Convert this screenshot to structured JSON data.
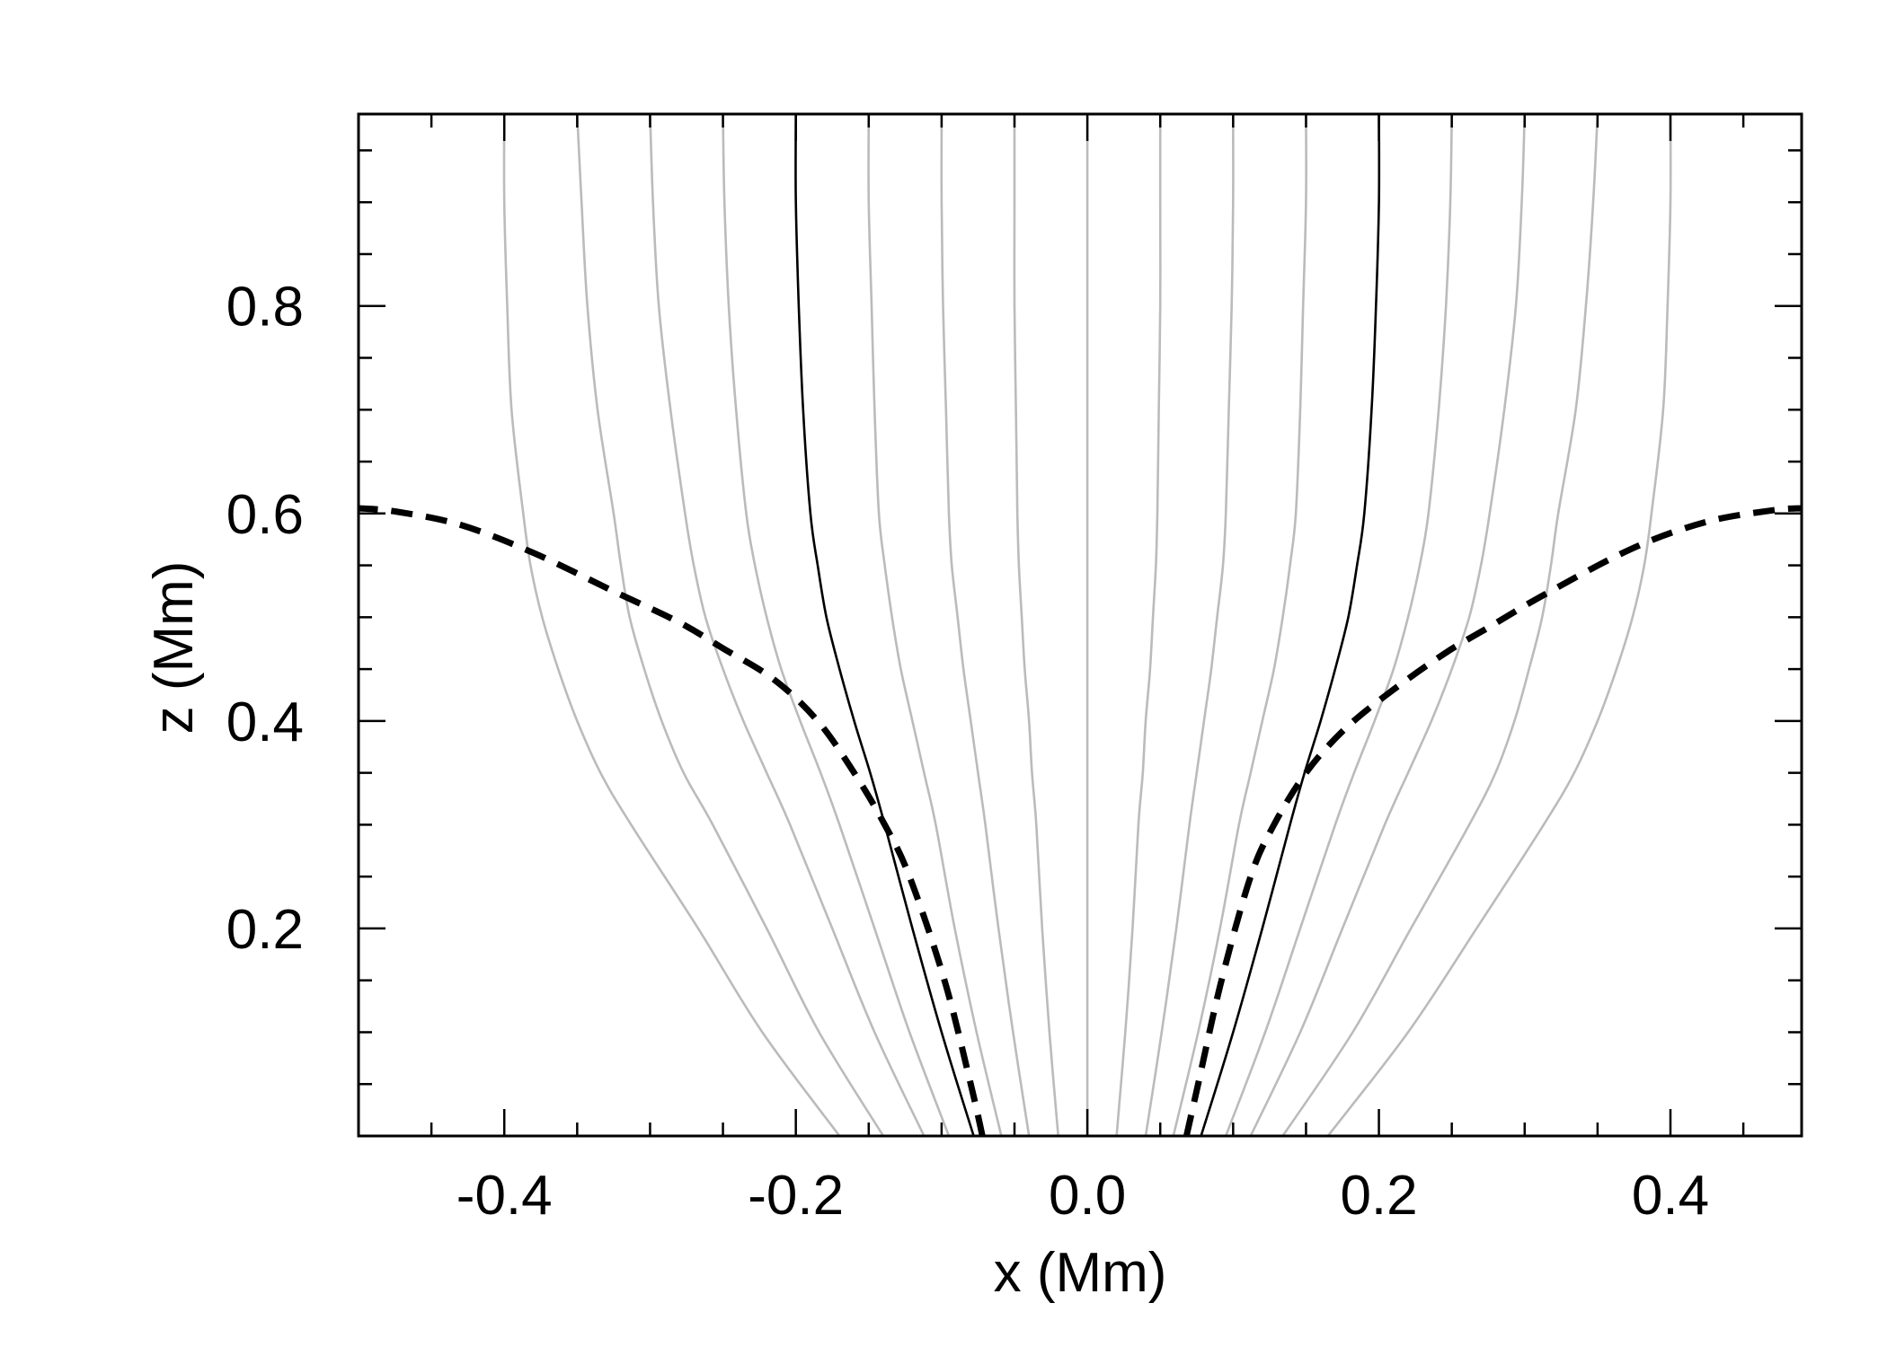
{
  "chart_data": {
    "type": "line",
    "title": "",
    "xlabel": "x (Mm)",
    "ylabel": "z (Mm)",
    "xlim": [
      -0.5,
      0.49
    ],
    "ylim": [
      0.0,
      0.985
    ],
    "x_ticks": [
      -0.4,
      -0.2,
      0.0,
      0.2,
      0.4
    ],
    "x_tick_labels": [
      "-0.4",
      "-0.2",
      "0.0",
      "0.2",
      "0.4"
    ],
    "y_ticks": [
      0.2,
      0.4,
      0.6,
      0.8
    ],
    "y_tick_labels": [
      "0.2",
      "0.4",
      "0.6",
      "0.8"
    ],
    "grid": false,
    "legend": "none",
    "colors": {
      "field_line": "#bbbbbb",
      "highlight_line": "#000000",
      "boundary": "#000000"
    },
    "field_lines": {
      "z": [
        0.0,
        0.1,
        0.2,
        0.3,
        0.35,
        0.4,
        0.45,
        0.5,
        0.55,
        0.6,
        0.7,
        0.8,
        0.9,
        0.985
      ],
      "highlight_index": 4,
      "series": [
        {
          "x": [
            -0.17,
            -0.223,
            -0.267,
            -0.313,
            -0.334,
            -0.35,
            -0.363,
            -0.374,
            -0.382,
            -0.387,
            -0.395,
            -0.398,
            -0.4,
            -0.4
          ]
        },
        {
          "x": [
            -0.14,
            -0.184,
            -0.22,
            -0.257,
            -0.277,
            -0.292,
            -0.304,
            -0.314,
            -0.32,
            -0.325,
            -0.336,
            -0.343,
            -0.347,
            -0.35
          ]
        },
        {
          "x": [
            -0.112,
            -0.146,
            -0.175,
            -0.204,
            -0.22,
            -0.236,
            -0.25,
            -0.262,
            -0.27,
            -0.276,
            -0.286,
            -0.294,
            -0.298,
            -0.3
          ]
        },
        {
          "x": [
            -0.095,
            -0.122,
            -0.146,
            -0.17,
            -0.183,
            -0.197,
            -0.21,
            -0.22,
            -0.228,
            -0.234,
            -0.241,
            -0.246,
            -0.249,
            -0.25
          ]
        },
        {
          "x": [
            -0.078,
            -0.1,
            -0.12,
            -0.139,
            -0.149,
            -0.16,
            -0.17,
            -0.179,
            -0.185,
            -0.19,
            -0.195,
            -0.198,
            -0.2,
            -0.2
          ]
        },
        {
          "x": [
            -0.059,
            -0.076,
            -0.091,
            -0.104,
            -0.112,
            -0.12,
            -0.128,
            -0.134,
            -0.139,
            -0.143,
            -0.146,
            -0.148,
            -0.15,
            -0.15
          ]
        },
        {
          "x": [
            -0.04,
            -0.051,
            -0.061,
            -0.07,
            -0.075,
            -0.08,
            -0.085,
            -0.089,
            -0.093,
            -0.095,
            -0.097,
            -0.099,
            -0.1,
            -0.1
          ]
        },
        {
          "x": [
            -0.02,
            -0.026,
            -0.031,
            -0.035,
            -0.038,
            -0.04,
            -0.043,
            -0.045,
            -0.047,
            -0.048,
            -0.049,
            -0.05,
            -0.05,
            -0.05
          ]
        },
        {
          "x": [
            0.0,
            0.0,
            0.0,
            0.0,
            0.0,
            0.0,
            0.0,
            0.0,
            0.0,
            0.0,
            0.0,
            0.0,
            0.0,
            0.0
          ]
        },
        {
          "x": [
            0.02,
            0.026,
            0.031,
            0.035,
            0.038,
            0.04,
            0.043,
            0.045,
            0.047,
            0.048,
            0.049,
            0.05,
            0.05,
            0.05
          ]
        },
        {
          "x": [
            0.04,
            0.051,
            0.061,
            0.07,
            0.075,
            0.08,
            0.085,
            0.089,
            0.093,
            0.095,
            0.097,
            0.099,
            0.1,
            0.1
          ]
        },
        {
          "x": [
            0.059,
            0.076,
            0.091,
            0.104,
            0.112,
            0.12,
            0.128,
            0.134,
            0.139,
            0.143,
            0.146,
            0.148,
            0.15,
            0.15
          ]
        },
        {
          "x": [
            0.078,
            0.1,
            0.12,
            0.139,
            0.149,
            0.16,
            0.17,
            0.179,
            0.185,
            0.19,
            0.195,
            0.198,
            0.2,
            0.2
          ]
        },
        {
          "x": [
            0.095,
            0.122,
            0.146,
            0.17,
            0.183,
            0.197,
            0.21,
            0.22,
            0.228,
            0.234,
            0.241,
            0.246,
            0.249,
            0.25
          ]
        },
        {
          "x": [
            0.112,
            0.146,
            0.175,
            0.204,
            0.22,
            0.236,
            0.25,
            0.262,
            0.27,
            0.276,
            0.286,
            0.294,
            0.298,
            0.3
          ]
        },
        {
          "x": [
            0.134,
            0.182,
            0.222,
            0.262,
            0.28,
            0.293,
            0.303,
            0.312,
            0.318,
            0.323,
            0.335,
            0.342,
            0.347,
            0.35
          ]
        },
        {
          "x": [
            0.165,
            0.22,
            0.267,
            0.313,
            0.334,
            0.35,
            0.363,
            0.374,
            0.382,
            0.387,
            0.395,
            0.398,
            0.4,
            0.4
          ]
        }
      ]
    },
    "boundary_curves": [
      {
        "style": "dashed",
        "x": [
          -0.072,
          -0.08,
          -0.098,
          -0.122,
          -0.139,
          -0.16,
          -0.185,
          -0.215,
          -0.25,
          -0.28,
          -0.325,
          -0.38,
          -0.43,
          -0.475,
          -0.5
        ],
        "y": [
          0.0,
          0.05,
          0.15,
          0.25,
          0.3,
          0.35,
          0.4,
          0.44,
          0.47,
          0.495,
          0.525,
          0.562,
          0.589,
          0.602,
          0.605
        ]
      },
      {
        "style": "dashed",
        "x": [
          0.068,
          0.076,
          0.092,
          0.112,
          0.128,
          0.15,
          0.175,
          0.205,
          0.245,
          0.275,
          0.315,
          0.375,
          0.425,
          0.47,
          0.49
        ],
        "y": [
          0.0,
          0.05,
          0.15,
          0.25,
          0.3,
          0.35,
          0.39,
          0.425,
          0.465,
          0.49,
          0.523,
          0.567,
          0.592,
          0.603,
          0.605
        ]
      }
    ]
  }
}
